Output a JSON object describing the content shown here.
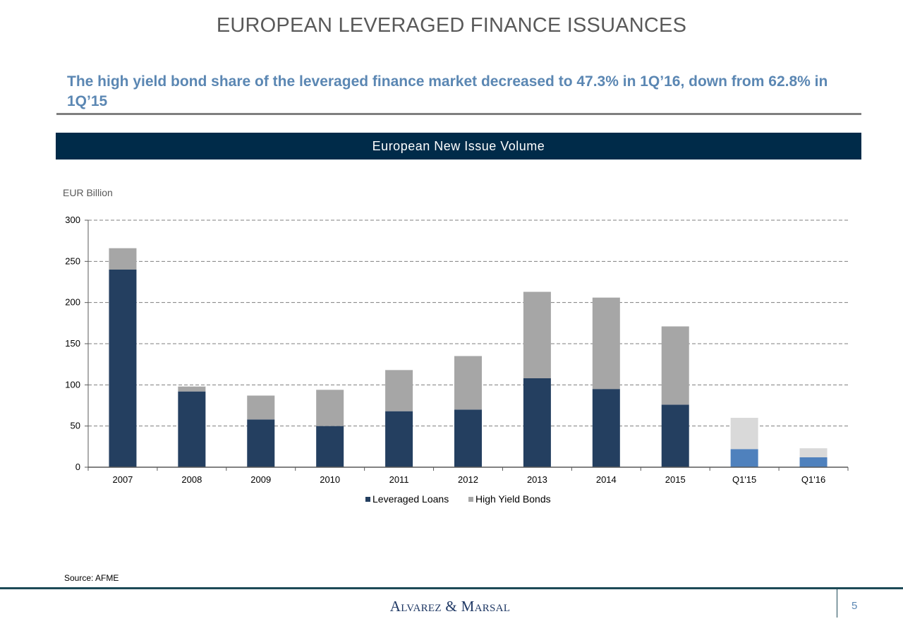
{
  "slide": {
    "title": "EUROPEAN LEVERAGED FINANCE ISSUANCES",
    "headline": "The high yield bond share of the leveraged finance market decreased to 47.3% in 1Q’16, down from 62.8% in 1Q’15",
    "chart_banner": "European New Issue Volume",
    "unit_label": "EUR Billion",
    "source": "Source: AFME",
    "page_number": "5"
  },
  "brand": {
    "text": "Alvarez & Marsal"
  },
  "colors": {
    "title": "#595959",
    "headline": "#5b87b3",
    "banner": "#002b49",
    "leveraged_loans": "#243f60",
    "high_yield_bonds": "#a6a6a6",
    "leveraged_loans_quarterly": "#4f81bd",
    "high_yield_bonds_quarterly": "#d9d9d9"
  },
  "chart_data": {
    "type": "bar",
    "stacked": true,
    "categories": [
      "2007",
      "2008",
      "2009",
      "2010",
      "2011",
      "2012",
      "2013",
      "2014",
      "2015",
      "Q1'15",
      "Q1'16"
    ],
    "series": [
      {
        "name": "Leveraged Loans",
        "values": [
          240,
          92,
          58,
          50,
          68,
          70,
          108,
          95,
          76,
          22,
          12
        ]
      },
      {
        "name": "High Yield Bonds",
        "values": [
          26,
          6,
          29,
          44,
          50,
          65,
          105,
          111,
          95,
          38,
          11
        ]
      }
    ],
    "ylim": [
      0,
      300
    ],
    "yticks": [
      0,
      50,
      100,
      150,
      200,
      250,
      300
    ],
    "ylabel": "EUR Billion",
    "grid": true,
    "legend_position": "bottom",
    "highlighted_categories": [
      "Q1'15",
      "Q1'16"
    ]
  }
}
